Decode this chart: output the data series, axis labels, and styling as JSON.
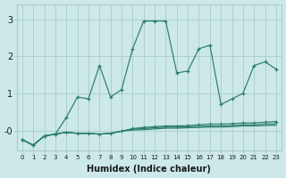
{
  "xlabel": "Humidex (Indice chaleur)",
  "bg_color": "#cce8e8",
  "line_color": "#2a7d6b",
  "grid_color": "#aacccc",
  "x_data": [
    0,
    1,
    2,
    3,
    4,
    5,
    6,
    7,
    8,
    9,
    10,
    11,
    12,
    13,
    14,
    15,
    16,
    17,
    18,
    19,
    20,
    21,
    22,
    23
  ],
  "series1": [
    -0.25,
    -0.4,
    -0.15,
    -0.1,
    0.35,
    0.9,
    0.85,
    1.75,
    0.9,
    1.1,
    2.2,
    2.95,
    2.95,
    2.95,
    1.55,
    1.6,
    2.2,
    2.3,
    0.7,
    0.85,
    1.0,
    1.75,
    1.85,
    1.65
  ],
  "series2": [
    -0.25,
    -0.4,
    -0.15,
    -0.1,
    -0.05,
    -0.08,
    -0.08,
    -0.1,
    -0.08,
    -0.02,
    0.05,
    0.08,
    0.1,
    0.12,
    0.12,
    0.13,
    0.15,
    0.17,
    0.17,
    0.18,
    0.2,
    0.2,
    0.22,
    0.24
  ],
  "series3": [
    -0.25,
    -0.4,
    -0.15,
    -0.1,
    -0.05,
    -0.08,
    -0.08,
    -0.1,
    -0.08,
    -0.02,
    0.03,
    0.05,
    0.07,
    0.09,
    0.09,
    0.1,
    0.11,
    0.12,
    0.12,
    0.13,
    0.15,
    0.15,
    0.17,
    0.18
  ],
  "series4": [
    -0.25,
    -0.4,
    -0.15,
    -0.1,
    -0.05,
    -0.08,
    -0.08,
    -0.1,
    -0.08,
    -0.02,
    0.01,
    0.02,
    0.04,
    0.06,
    0.06,
    0.07,
    0.08,
    0.09,
    0.09,
    0.1,
    0.12,
    0.12,
    0.13,
    0.14
  ],
  "ytick_vals": [
    0,
    1,
    2,
    3
  ],
  "ytick_labels": [
    "-0",
    "1",
    "2",
    "3"
  ],
  "ylim": [
    -0.55,
    3.4
  ],
  "xlim": [
    -0.5,
    23.5
  ]
}
